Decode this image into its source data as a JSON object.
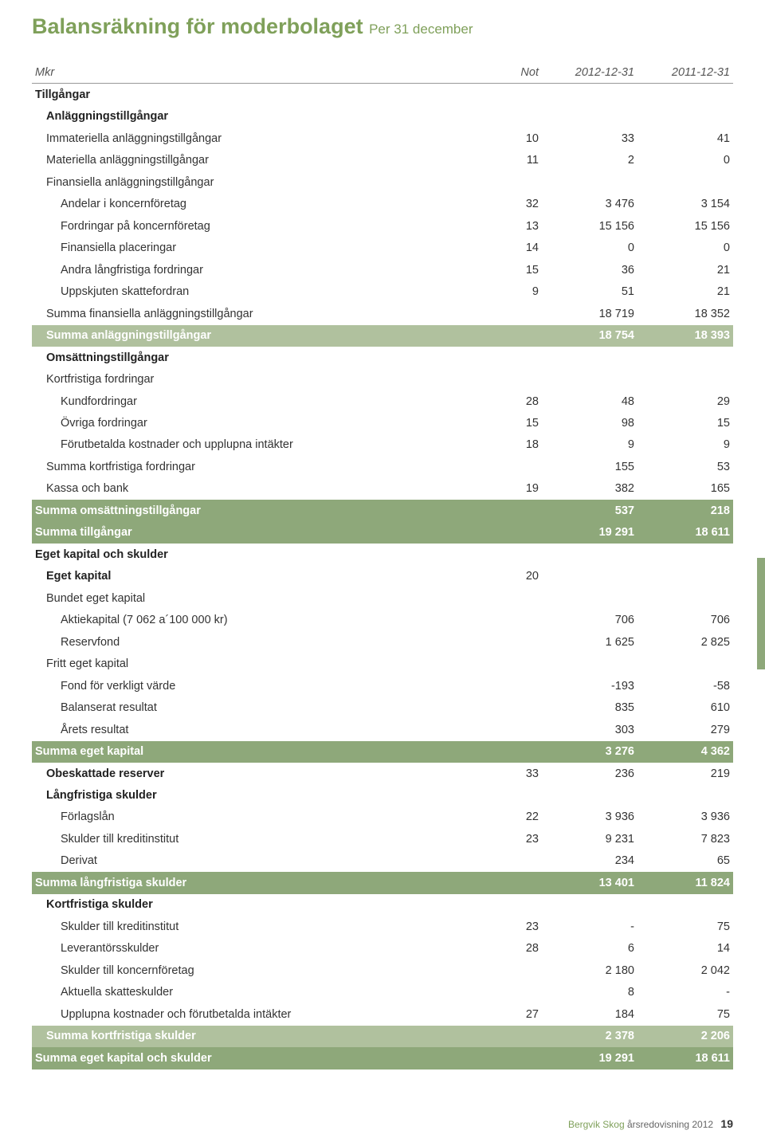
{
  "title": "Balansräkning för moderbolaget",
  "subtitle": "Per 31 december",
  "columns": {
    "unit": "Mkr",
    "note": "Not",
    "y1": "2012-12-31",
    "y2": "2011-12-31"
  },
  "colors": {
    "greenStrong": "#8ea87a",
    "greenLight": "#b0c19e",
    "titleGreen": "#7fa05a"
  },
  "rows": [
    {
      "label": "Tillgångar",
      "bold": true,
      "indent": 0
    },
    {
      "label": "Anläggningstillgångar",
      "bold": true,
      "indent": 1
    },
    {
      "label": "Immateriella anläggningstillgångar",
      "note": "10",
      "y1": "33",
      "y2": "41",
      "indent": 1
    },
    {
      "label": "Materiella anläggningstillgångar",
      "note": "11",
      "y1": "2",
      "y2": "0",
      "indent": 1
    },
    {
      "label": "Finansiella anläggningstillgångar",
      "indent": 1
    },
    {
      "label": "Andelar i koncernföretag",
      "note": "32",
      "y1": "3 476",
      "y2": "3 154",
      "indent": 2
    },
    {
      "label": "Fordringar på koncernföretag",
      "note": "13",
      "y1": "15 156",
      "y2": "15 156",
      "indent": 2
    },
    {
      "label": "Finansiella placeringar",
      "note": "14",
      "y1": "0",
      "y2": "0",
      "indent": 2
    },
    {
      "label": "Andra långfristiga fordringar",
      "note": "15",
      "y1": "36",
      "y2": "21",
      "indent": 2
    },
    {
      "label": "Uppskjuten skattefordran",
      "note": "9",
      "y1": "51",
      "y2": "21",
      "indent": 2
    },
    {
      "label": "Summa finansiella anläggningstillgångar",
      "y1": "18 719",
      "y2": "18 352",
      "indent": 1
    },
    {
      "label": "Summa anläggningstillgångar",
      "y1": "18 754",
      "y2": "18 393",
      "style": "green-light"
    },
    {
      "label": "Omsättningstillgångar",
      "bold": true,
      "indent": 1
    },
    {
      "label": "Kortfristiga fordringar",
      "indent": 1
    },
    {
      "label": "Kundfordringar",
      "note": "28",
      "y1": "48",
      "y2": "29",
      "indent": 2
    },
    {
      "label": "Övriga fordringar",
      "note": "15",
      "y1": "98",
      "y2": "15",
      "indent": 2
    },
    {
      "label": "Förutbetalda kostnader och upplupna intäkter",
      "note": "18",
      "y1": "9",
      "y2": "9",
      "indent": 2
    },
    {
      "label": "Summa kortfristiga fordringar",
      "y1": "155",
      "y2": "53",
      "indent": 1
    },
    {
      "label": "Kassa och bank",
      "note": "19",
      "y1": "382",
      "y2": "165",
      "indent": 1
    },
    {
      "label": "Summa omsättningstillgångar",
      "y1": "537",
      "y2": "218",
      "style": "green-strong"
    },
    {
      "label": "Summa tillgångar",
      "y1": "19 291",
      "y2": "18 611",
      "style": "green-strong"
    },
    {
      "label": "Eget kapital och skulder",
      "bold": true,
      "indent": 0
    },
    {
      "label": "Eget kapital",
      "note": "20",
      "bold": true,
      "indent": 1
    },
    {
      "label": "Bundet eget kapital",
      "indent": 1
    },
    {
      "label": "Aktiekapital (7 062 a´100 000 kr)",
      "y1": "706",
      "y2": "706",
      "indent": 2
    },
    {
      "label": "Reservfond",
      "y1": "1 625",
      "y2": "2 825",
      "indent": 2
    },
    {
      "label": "Fritt eget kapital",
      "indent": 1
    },
    {
      "label": "Fond för verkligt värde",
      "y1": "-193",
      "y2": "-58",
      "indent": 2
    },
    {
      "label": "Balanserat resultat",
      "y1": "835",
      "y2": "610",
      "indent": 2
    },
    {
      "label": "Årets resultat",
      "y1": "303",
      "y2": "279",
      "indent": 2
    },
    {
      "label": "Summa eget kapital",
      "y1": "3 276",
      "y2": "4 362",
      "style": "green-strong"
    },
    {
      "label": "Obeskattade reserver",
      "note": "33",
      "y1": "236",
      "y2": "219",
      "bold": true,
      "indent": 1
    },
    {
      "label": "Långfristiga skulder",
      "bold": true,
      "indent": 1
    },
    {
      "label": "Förlagslån",
      "note": "22",
      "y1": "3 936",
      "y2": "3 936",
      "indent": 2
    },
    {
      "label": "Skulder till kreditinstitut",
      "note": "23",
      "y1": "9 231",
      "y2": "7 823",
      "indent": 2
    },
    {
      "label": "Derivat",
      "y1": "234",
      "y2": "65",
      "indent": 2
    },
    {
      "label": "Summa långfristiga skulder",
      "y1": "13 401",
      "y2": "11 824",
      "style": "green-strong"
    },
    {
      "label": "Kortfristiga skulder",
      "bold": true,
      "indent": 1
    },
    {
      "label": "Skulder till kreditinstitut",
      "note": "23",
      "y1": "-",
      "y2": "75",
      "indent": 2
    },
    {
      "label": "Leverantörsskulder",
      "note": "28",
      "y1": "6",
      "y2": "14",
      "indent": 2
    },
    {
      "label": "Skulder till koncernföretag",
      "y1": "2 180",
      "y2": "2 042",
      "indent": 2
    },
    {
      "label": "Aktuella skatteskulder",
      "y1": "8",
      "y2": "-",
      "indent": 2
    },
    {
      "label": "Upplupna kostnader och förutbetalda intäkter",
      "note": "27",
      "y1": "184",
      "y2": "75",
      "indent": 2
    },
    {
      "label": "Summa kortfristiga skulder",
      "y1": "2 378",
      "y2": "2 206",
      "style": "green-light"
    },
    {
      "label": "Summa eget kapital och skulder",
      "y1": "19 291",
      "y2": "18 611",
      "style": "green-strong"
    }
  ],
  "footer": {
    "company": "Bergvik Skog",
    "report": "årsredovisning 2012",
    "page": "19"
  }
}
